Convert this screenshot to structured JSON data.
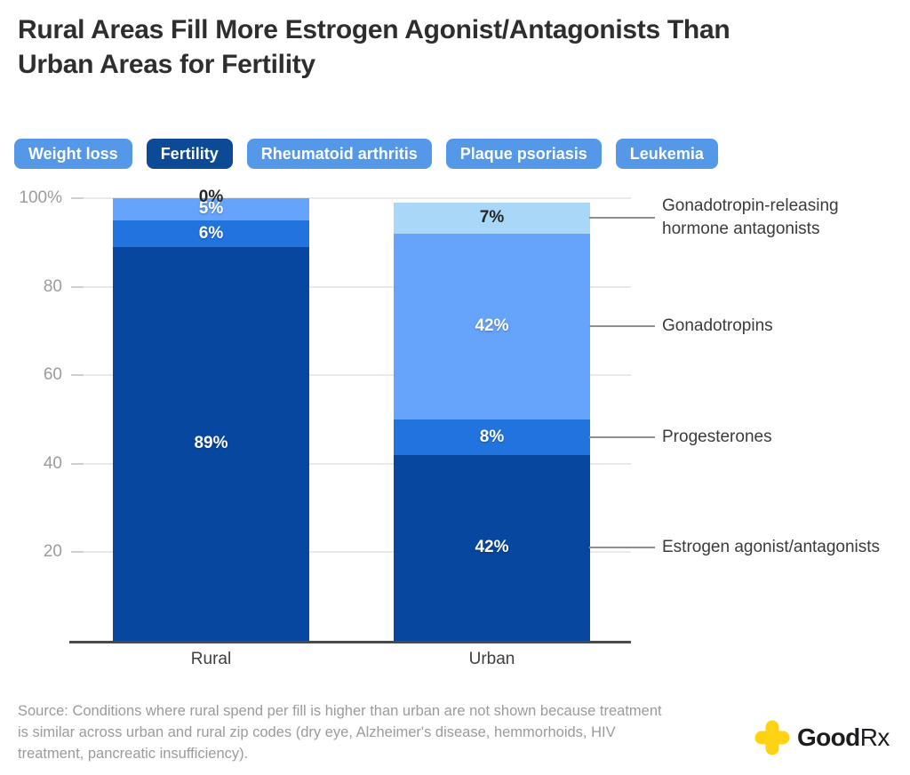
{
  "title": {
    "line1": "Rural Areas Fill More Estrogen Agonist/Antagonists Than",
    "line2": "Urban Areas for Fertility"
  },
  "tabs": [
    {
      "label": "Weight loss",
      "active": false
    },
    {
      "label": "Fertility",
      "active": true
    },
    {
      "label": "Rheumatoid arthritis",
      "active": false
    },
    {
      "label": "Plaque psoriasis",
      "active": false
    },
    {
      "label": "Leukemia",
      "active": false
    }
  ],
  "tab_colors": {
    "active_bg": "#0d4a96",
    "inactive_bg": "#5598e8",
    "text": "#ffffff"
  },
  "chart_data": {
    "type": "bar",
    "stacked": true,
    "grid": true,
    "legend_position": "right",
    "categories": [
      "Rural",
      "Urban"
    ],
    "series": [
      {
        "name": "Estrogen agonist/antagonists",
        "slug": "estrogen-agonist-antagonists",
        "color": "#08479f",
        "dark_label": false,
        "values": [
          89,
          42
        ],
        "legend_label": "Estrogen agonist/antagonists"
      },
      {
        "name": "Progesterones",
        "slug": "progesterones",
        "color": "#2173de",
        "dark_label": false,
        "values": [
          6,
          8
        ],
        "legend_label": "Progesterones"
      },
      {
        "name": "Gonadotropins",
        "slug": "gonadotropins",
        "color": "#66a3fa",
        "dark_label": false,
        "values": [
          5,
          42
        ],
        "legend_label": "Gonadotropins"
      },
      {
        "name": "Gonadotropin-releasing hormone antagonists",
        "slug": "gnrh-antagonists",
        "color": "#a9d7f8",
        "dark_label": true,
        "values": [
          0,
          7
        ],
        "legend_label": "Gonadotropin-releasing\nhormone antagonists"
      }
    ],
    "value_suffix": "%",
    "ylim": [
      0,
      100
    ],
    "yticks": [
      {
        "value": 100,
        "label": "100%"
      },
      {
        "value": 80,
        "label": "80"
      },
      {
        "value": 60,
        "label": "60"
      },
      {
        "value": 40,
        "label": "40"
      },
      {
        "value": 20,
        "label": "20"
      }
    ]
  },
  "source": "Source: Conditions where rural spend per fill is higher than urban are not shown because treatment\nis similar across urban and rural zip codes (dry eye, Alzheimer's disease, hemmorhoids, HIV\ntreatment, pancreatic insufficiency).",
  "logo": {
    "brand_bold": "Good",
    "brand_light": "Rx",
    "icon_color": "#ffd314"
  }
}
